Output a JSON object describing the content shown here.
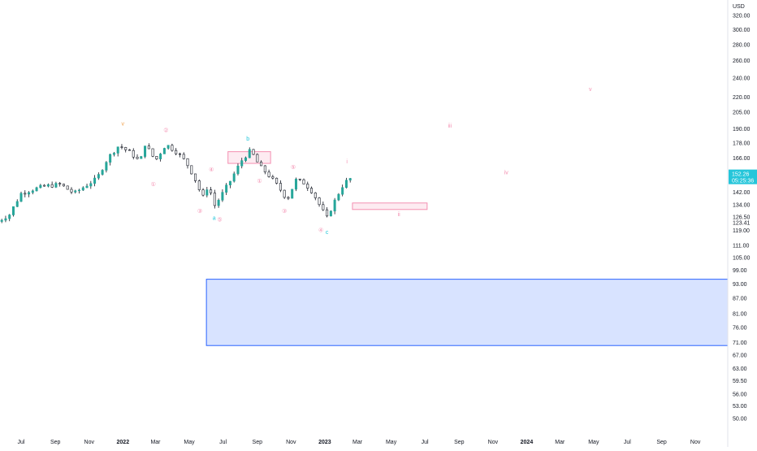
{
  "chart_data": {
    "type": "candlestick",
    "currency_label": "USD",
    "y_scale": "log",
    "ylim": [
      48,
      335
    ],
    "y_ticks": [
      "320.00",
      "300.00",
      "280.00",
      "260.00",
      "240.00",
      "220.00",
      "205.00",
      "190.00",
      "178.00",
      "166.00",
      "154.00",
      "142.00",
      "134.00",
      "126.50",
      "119.00",
      "111.00",
      "105.00",
      "99.00",
      "93.00",
      "87.00",
      "81.00",
      "76.00",
      "71.00",
      "67.00",
      "63.00",
      "59.50",
      "56.00",
      "53.00",
      "50.00"
    ],
    "x_ticks": [
      {
        "label": "Jul",
        "date": "2021-07"
      },
      {
        "label": "Sep",
        "date": "2021-09"
      },
      {
        "label": "Nov",
        "date": "2021-11"
      },
      {
        "label": "2022",
        "date": "2022-01",
        "bold": true
      },
      {
        "label": "Mar",
        "date": "2022-03"
      },
      {
        "label": "May",
        "date": "2022-05"
      },
      {
        "label": "Jul",
        "date": "2022-07"
      },
      {
        "label": "Sep",
        "date": "2022-09"
      },
      {
        "label": "Nov",
        "date": "2022-11"
      },
      {
        "label": "2023",
        "date": "2023-01",
        "bold": true
      },
      {
        "label": "Mar",
        "date": "2023-03"
      },
      {
        "label": "May",
        "date": "2023-05"
      },
      {
        "label": "Jul",
        "date": "2023-07"
      },
      {
        "label": "Sep",
        "date": "2023-09"
      },
      {
        "label": "Nov",
        "date": "2023-11"
      },
      {
        "label": "2024",
        "date": "2024-01",
        "bold": true
      },
      {
        "label": "Mar",
        "date": "2024-03"
      },
      {
        "label": "May",
        "date": "2024-05"
      },
      {
        "label": "Jul",
        "date": "2024-07"
      },
      {
        "label": "Sep",
        "date": "2024-09"
      },
      {
        "label": "Nov",
        "date": "2024-11"
      }
    ],
    "price_path": [
      [
        "2021-05-20",
        124
      ],
      [
        "2021-06-10",
        128
      ],
      [
        "2021-07-01",
        141
      ],
      [
        "2021-07-25",
        144
      ],
      [
        "2021-08-15",
        146
      ],
      [
        "2021-09-10",
        147
      ],
      [
        "2021-10-05",
        141
      ],
      [
        "2021-10-25",
        146
      ],
      [
        "2021-11-15",
        151
      ],
      [
        "2021-12-05",
        166
      ],
      [
        "2021-12-25",
        176
      ],
      [
        "2022-01-15",
        170
      ],
      [
        "2022-02-01",
        163
      ],
      [
        "2022-02-10",
        177
      ],
      [
        "2022-03-01",
        164
      ],
      [
        "2022-03-20",
        177
      ],
      [
        "2022-04-10",
        170
      ],
      [
        "2022-04-25",
        163
      ],
      [
        "2022-05-10",
        152
      ],
      [
        "2022-05-25",
        138
      ],
      [
        "2022-06-05",
        147
      ],
      [
        "2022-06-15",
        133
      ],
      [
        "2022-06-25",
        138
      ],
      [
        "2022-07-15",
        150
      ],
      [
        "2022-08-05",
        165
      ],
      [
        "2022-08-20",
        172
      ],
      [
        "2022-09-05",
        160
      ],
      [
        "2022-09-25",
        152
      ],
      [
        "2022-10-10",
        145
      ],
      [
        "2022-10-25",
        137
      ],
      [
        "2022-11-10",
        150
      ],
      [
        "2022-11-25",
        148
      ],
      [
        "2022-12-10",
        142
      ],
      [
        "2022-12-25",
        132
      ],
      [
        "2023-01-05",
        126
      ],
      [
        "2023-01-20",
        137
      ],
      [
        "2023-02-05",
        148
      ],
      [
        "2023-02-20",
        152
      ]
    ],
    "last_price": {
      "value": "152.26",
      "countdown": "05:25:36"
    },
    "extra_price_label": "123.41",
    "zones": [
      {
        "name": "resistance-zone",
        "color": "#f48fb1",
        "from": "2022-07-10",
        "to": "2022-09-25",
        "low": 162,
        "high": 171
      },
      {
        "name": "wave-ii-target-zone",
        "color": "#f48fb1",
        "from": "2023-02-20",
        "to": "2023-07-05",
        "low": 131,
        "high": 135
      },
      {
        "name": "support-zone",
        "color": "#2962ff",
        "from": "2022-06-01",
        "to": "2024-12-31",
        "low": 70,
        "high": 95
      }
    ],
    "wave_labels": [
      {
        "text": "v",
        "date": "2022-01-01",
        "price": 193,
        "color": "#f0a04b"
      },
      {
        "text": "①",
        "date": "2022-02-25",
        "price": 146,
        "color": "#f48fb1"
      },
      {
        "text": "②",
        "date": "2022-03-20",
        "price": 187,
        "color": "#f48fb1"
      },
      {
        "text": "③",
        "date": "2022-05-20",
        "price": 129,
        "color": "#f48fb1"
      },
      {
        "text": "④",
        "date": "2022-06-10",
        "price": 156,
        "color": "#f48fb1"
      },
      {
        "text": "a",
        "date": "2022-06-15",
        "price": 125,
        "color": "#26c6da"
      },
      {
        "text": "⑤",
        "date": "2022-06-25",
        "price": 124,
        "color": "#f48fb1"
      },
      {
        "text": "b",
        "date": "2022-08-15",
        "price": 180,
        "color": "#26c6da"
      },
      {
        "text": "①",
        "date": "2022-09-05",
        "price": 148,
        "color": "#f48fb1"
      },
      {
        "text": "③",
        "date": "2022-10-20",
        "price": 129,
        "color": "#f48fb1"
      },
      {
        "text": "⑤",
        "date": "2022-11-05",
        "price": 158,
        "color": "#f48fb1"
      },
      {
        "text": "④",
        "date": "2022-12-25",
        "price": 118,
        "color": "#f48fb1"
      },
      {
        "text": "c",
        "date": "2023-01-05",
        "price": 117,
        "color": "#26c6da"
      },
      {
        "text": "i",
        "date": "2023-02-10",
        "price": 162,
        "color": "#f48fb1"
      },
      {
        "text": "ii",
        "date": "2023-05-15",
        "price": 127,
        "color": "#f48fb1"
      },
      {
        "text": "iii",
        "date": "2023-08-15",
        "price": 191,
        "color": "#f48fb1"
      },
      {
        "text": "iv",
        "date": "2023-11-25",
        "price": 154,
        "color": "#f48fb1"
      },
      {
        "text": "v",
        "date": "2024-04-25",
        "price": 226,
        "color": "#f48fb1"
      }
    ],
    "colors": {
      "up": "#26a69a",
      "down": "#ef5350",
      "wick": "#131722",
      "accent": "#26c6da",
      "grid": "#f0f3fa"
    }
  }
}
